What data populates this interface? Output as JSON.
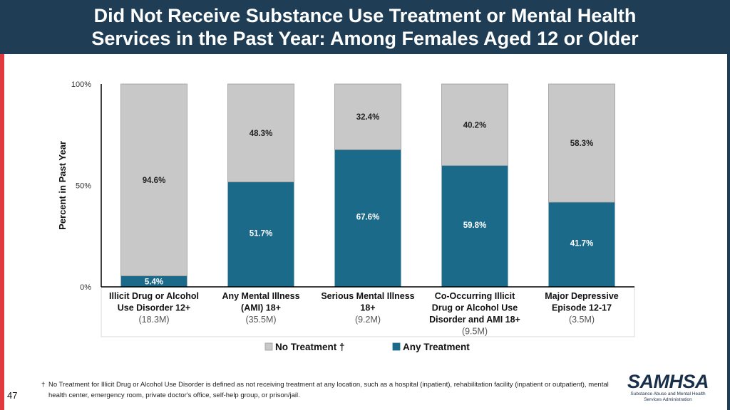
{
  "header": {
    "title_line1": "Did Not Receive Substance Use Treatment or Mental Health",
    "title_line2": "Services in the Past Year: Among Females Aged 12 or Older"
  },
  "slide": {
    "number": "47"
  },
  "footnote": {
    "dagger": "†",
    "text": "No Treatment for Illicit Drug or Alcohol Use Disorder is defined as not receiving treatment at any location, such as a hospital (inpatient), rehabilitation facility (inpatient or outpatient), mental health center, emergency room, private doctor's office, self-help group, or prison/jail."
  },
  "logo": {
    "word": "SAMHSA",
    "sub_line1": "Substance Abuse and Mental Health",
    "sub_line2": "Services Administration"
  },
  "colors": {
    "header_bg": "#1f3d55",
    "accent_red": "#e03a3e",
    "no_treatment": "#c8c8c8",
    "any_treatment": "#1b6a8a"
  },
  "chart_data": {
    "type": "bar",
    "stacked": true,
    "ylabel": "Percent in Past Year",
    "ylim": [
      0,
      100
    ],
    "y_ticks": [
      {
        "value": 0,
        "label": "0%"
      },
      {
        "value": 50,
        "label": "50%"
      },
      {
        "value": 100,
        "label": "100%"
      }
    ],
    "categories": [
      {
        "lines": [
          "Illicit Drug or Alcohol",
          "Use Disorder 12+"
        ],
        "count": "(18.3M)"
      },
      {
        "lines": [
          "Any Mental Illness",
          "(AMI) 18+"
        ],
        "count": "(35.5M)"
      },
      {
        "lines": [
          "Serious Mental Illness",
          "18+"
        ],
        "count": "(9.2M)"
      },
      {
        "lines": [
          "Co-Occurring Illicit",
          "Drug or Alcohol Use",
          "Disorder and AMI 18+"
        ],
        "count": "(9.5M)"
      },
      {
        "lines": [
          "Major Depressive",
          "Episode 12-17"
        ],
        "count": "(3.5M)"
      }
    ],
    "series": [
      {
        "name": "Any Treatment",
        "color": "#1b6a8a",
        "values": [
          5.4,
          51.7,
          67.6,
          59.8,
          41.7
        ],
        "labels": [
          "5.4%",
          "51.7%",
          "67.6%",
          "59.8%",
          "41.7%"
        ]
      },
      {
        "name": "No Treatment †",
        "color": "#c8c8c8",
        "values": [
          94.6,
          48.3,
          32.4,
          40.2,
          58.3
        ],
        "labels": [
          "94.6%",
          "48.3%",
          "32.4%",
          "40.2%",
          "58.3%"
        ]
      }
    ],
    "legend": [
      {
        "label": "No Treatment †",
        "color": "#c8c8c8"
      },
      {
        "label": "Any Treatment",
        "color": "#1b6a8a"
      }
    ]
  }
}
